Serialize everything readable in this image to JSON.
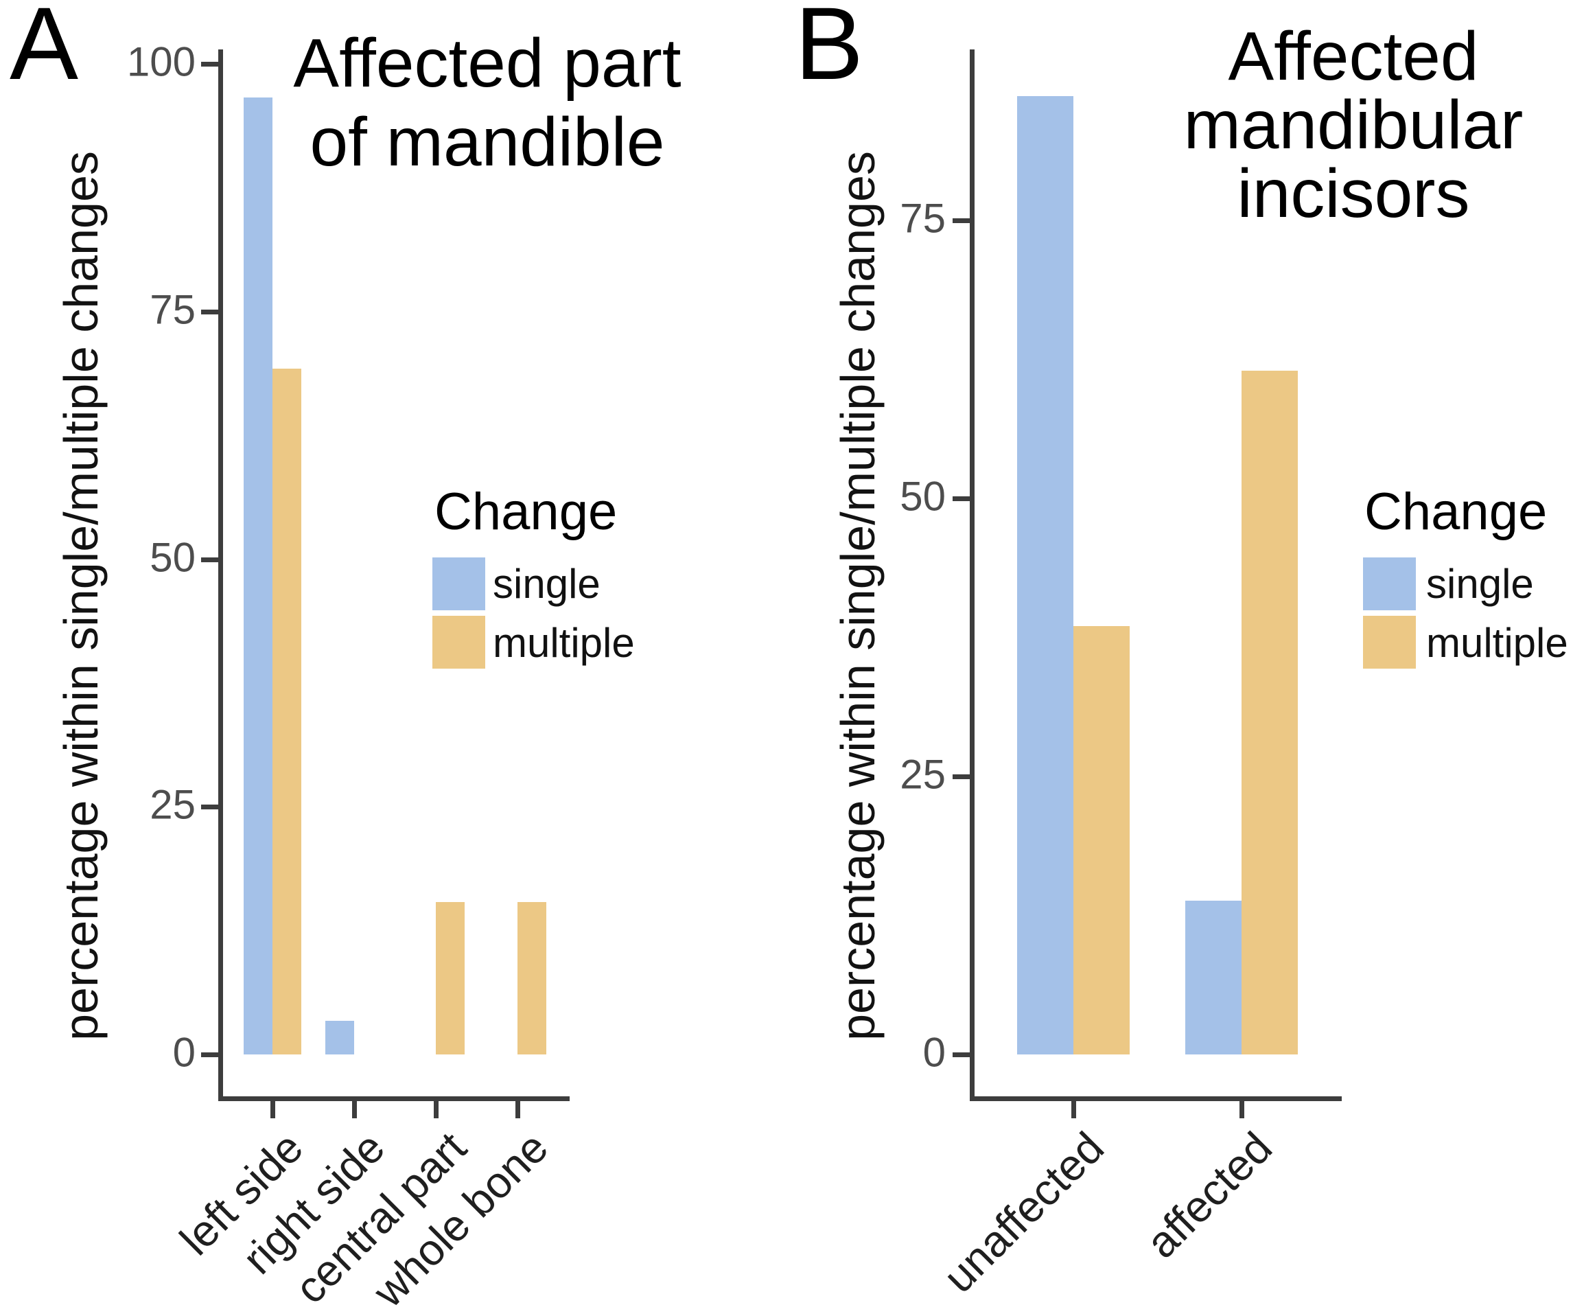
{
  "legend": {
    "title": "Change",
    "items": [
      {
        "label": "single",
        "color": "#a4c1e8"
      },
      {
        "label": "multiple",
        "color": "#ecc885"
      }
    ]
  },
  "chart_data": [
    {
      "type": "bar",
      "panel_label": "A",
      "title": "Affected part of mandible",
      "title_lines": [
        "Affected part",
        "of mandible"
      ],
      "ylabel": "percentage within single/multiple changes",
      "xlabel": "",
      "categories": [
        "left side",
        "right side",
        "central part",
        "whole bone"
      ],
      "series": [
        {
          "name": "single",
          "color": "#a4c1e8",
          "values": [
            96.6,
            3.4,
            0,
            0
          ]
        },
        {
          "name": "multiple",
          "color": "#ecc885",
          "values": [
            69.2,
            0,
            15.4,
            15.4
          ]
        }
      ],
      "yticks": [
        0,
        25,
        50,
        75,
        100
      ],
      "ylim": [
        0,
        101.5
      ],
      "grid": "off",
      "legend_title": "Change",
      "legend_position": "inside-right"
    },
    {
      "type": "bar",
      "panel_label": "B",
      "title": "Affected mandibular incisors",
      "title_lines": [
        "Affected",
        "mandibular",
        "incisors"
      ],
      "ylabel": "percentage within single/multiple changes",
      "xlabel": "",
      "categories": [
        "unaffected",
        "affected"
      ],
      "series": [
        {
          "name": "single",
          "color": "#a4c1e8",
          "values": [
            86.2,
            13.8
          ]
        },
        {
          "name": "multiple",
          "color": "#ecc885",
          "values": [
            38.5,
            61.5
          ]
        }
      ],
      "yticks": [
        0,
        25,
        50,
        75
      ],
      "ylim": [
        0,
        90.5
      ],
      "grid": "off",
      "legend_title": "Change",
      "legend_position": "right"
    }
  ]
}
